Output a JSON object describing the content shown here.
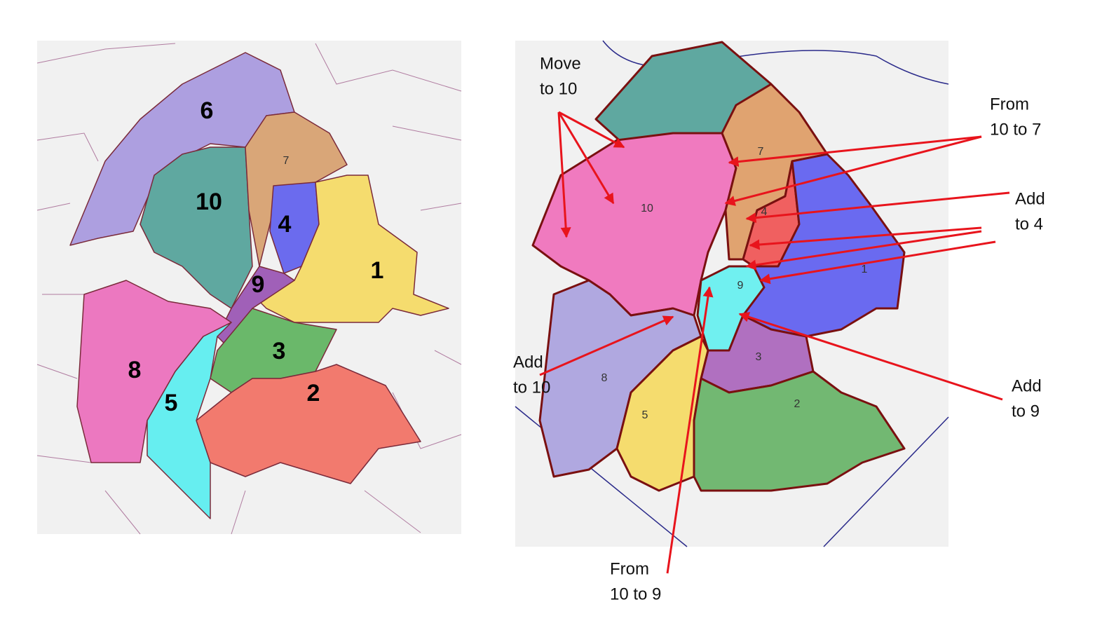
{
  "left_map": {
    "districts": [
      {
        "label": "1"
      },
      {
        "label": "2"
      },
      {
        "label": "3"
      },
      {
        "label": "4"
      },
      {
        "label": "5"
      },
      {
        "label": "6"
      },
      {
        "label": "7"
      },
      {
        "label": "8"
      },
      {
        "label": "9"
      },
      {
        "label": "10"
      }
    ]
  },
  "right_map": {
    "districts": [
      {
        "label": "1"
      },
      {
        "label": "2"
      },
      {
        "label": "3"
      },
      {
        "label": "4"
      },
      {
        "label": "5"
      },
      {
        "label": "7"
      },
      {
        "label": "8"
      },
      {
        "label": "9"
      },
      {
        "label": "10"
      }
    ],
    "annotations": [
      {
        "lines": [
          "Move",
          "to 10"
        ]
      },
      {
        "lines": [
          "From",
          "10 to 7"
        ]
      },
      {
        "lines": [
          "Add",
          "to 4"
        ]
      },
      {
        "lines": [
          "Add",
          "to 10"
        ]
      },
      {
        "lines": [
          "Add",
          "to 9"
        ]
      },
      {
        "lines": [
          "From",
          "10 to 9"
        ]
      }
    ]
  }
}
